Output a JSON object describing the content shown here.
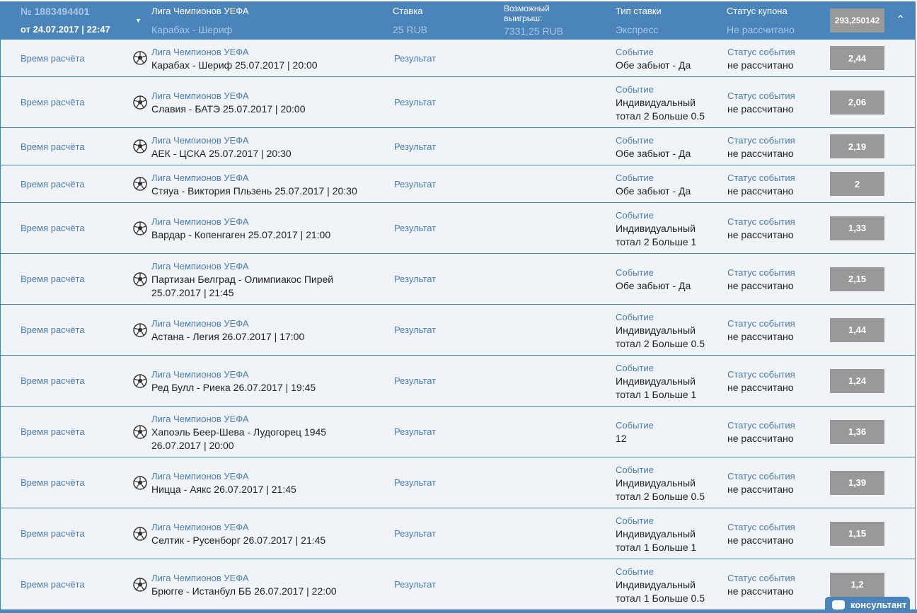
{
  "coupon": {
    "number": "№ 1883494401",
    "date": "от 24.07.2017 | 22:47",
    "league": "Лига Чемпионов УЕФА",
    "match": "Карабах - Шериф",
    "stake_label": "Ставка",
    "stake": "25 RUB",
    "win_label_1": "Возможный",
    "win_label_2": "выигрыш:",
    "win": "7331,25 RUB",
    "type_label": "Тип ставки",
    "type": "Экспресс",
    "status_label": "Статус купона",
    "status": "Не рассчитано",
    "total_odds": "293,250142"
  },
  "labels": {
    "time": "Время расчёта",
    "result": "Результат",
    "event": "Событие",
    "event_status": "Статус события",
    "not_calc": "не рассчитано"
  },
  "rows": [
    {
      "league": "Лига Чемпионов УЕФА",
      "match": [
        "Карабах - Шериф 25.07.2017 | 20:00"
      ],
      "event": [
        "Обе забьют - Да"
      ],
      "odds": "2,44"
    },
    {
      "league": "Лига Чемпионов УЕФА",
      "match": [
        "Славия - БАТЭ 25.07.2017 | 20:00"
      ],
      "event": [
        "Индивидуальный",
        "тотал 2 Больше 0.5"
      ],
      "odds": "2,06"
    },
    {
      "league": "Лига Чемпионов УЕФА",
      "match": [
        "АЕК - ЦСКА 25.07.2017 | 20:30"
      ],
      "event": [
        "Обе забьют - Да"
      ],
      "odds": "2,19"
    },
    {
      "league": "Лига Чемпионов УЕФА",
      "match": [
        "Стяуа - Виктория Пльзень 25.07.2017 | 20:30"
      ],
      "event": [
        "Обе забьют - Да"
      ],
      "odds": "2"
    },
    {
      "league": "Лига Чемпионов УЕФА",
      "match": [
        "Вардар - Копенгаген 25.07.2017 | 21:00"
      ],
      "event": [
        "Индивидуальный",
        "тотал 2 Больше 1"
      ],
      "odds": "1,33"
    },
    {
      "league": "Лига Чемпионов УЕФА",
      "match": [
        "Партизан Белград - Олимпиакос Пирей",
        "25.07.2017 | 21:45"
      ],
      "event": [
        "Обе забьют - Да"
      ],
      "odds": "2,15"
    },
    {
      "league": "Лига Чемпионов УЕФА",
      "match": [
        "Астана - Легия 26.07.2017 | 17:00"
      ],
      "event": [
        "Индивидуальный",
        "тотал 2 Больше 0.5"
      ],
      "odds": "1,44"
    },
    {
      "league": "Лига Чемпионов УЕФА",
      "match": [
        "Ред Булл - Риека 26.07.2017 | 19:45"
      ],
      "event": [
        "Индивидуальный",
        "тотал 1 Больше 1"
      ],
      "odds": "1,24"
    },
    {
      "league": "Лига Чемпионов УЕФА",
      "match": [
        "Хапоэль Беер-Шева - Лудогорец 1945",
        "26.07.2017 | 20:00"
      ],
      "event": [
        "12"
      ],
      "odds": "1,36"
    },
    {
      "league": "Лига Чемпионов УЕФА",
      "match": [
        "Ницца - Аякс 26.07.2017 | 21:45"
      ],
      "event": [
        "Индивидуальный",
        "тотал 2 Больше 0.5"
      ],
      "odds": "1,39"
    },
    {
      "league": "Лига Чемпионов УЕФА",
      "match": [
        "Селтик - Русенборг 26.07.2017 | 21:45"
      ],
      "event": [
        "Индивидуальный",
        "тотал 1 Больше 1"
      ],
      "odds": "1,15"
    },
    {
      "league": "Лига Чемпионов УЕФА",
      "match": [
        "Брюгге - Истанбул ББ 26.07.2017 | 22:00"
      ],
      "event": [
        "Индивидуальный",
        "тотал 1 Больше 0.5"
      ],
      "odds": "1,2"
    }
  ],
  "consultant": "консультант",
  "icons": {
    "sport": "soccer-ball-icon",
    "expand": "caret-down-icon",
    "collapse": "chevron-up-icon",
    "chat": "chat-bubble-icon"
  }
}
